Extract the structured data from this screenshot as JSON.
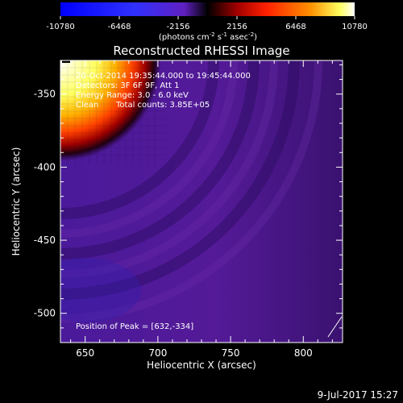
{
  "colorbar": {
    "ticks": [
      "-10780",
      "-6468",
      "-2156",
      "2156",
      "6468",
      "10780"
    ],
    "tick_values": [
      -10780,
      -6468,
      -2156,
      2156,
      6468,
      10780
    ],
    "range": [
      -10780,
      10780
    ],
    "units_prefix": "(photons cm",
    "units_exp1": "-2",
    "units_mid": " s",
    "units_exp2": "-1",
    "units_mid2": " asec",
    "units_exp3": "-2",
    "units_suffix": ")"
  },
  "chart_data": {
    "type": "heatmap",
    "title": "Reconstructed RHESSI Image",
    "xlabel": "Heliocentric X (arcsec)",
    "ylabel": "Heliocentric Y (arcsec)",
    "xlim": [
      633,
      827
    ],
    "ylim": [
      -520,
      -327
    ],
    "x_ticks": [
      650,
      700,
      750,
      800
    ],
    "y_ticks": [
      -350,
      -400,
      -450,
      -500
    ],
    "x_tick_labels": [
      "650",
      "700",
      "750",
      "800"
    ],
    "y_tick_labels": [
      "-350",
      "-400",
      "-450",
      "-500"
    ],
    "annotations": {
      "line1": "20-Oct-2014 19:35:44.000 to 19:45:44.000",
      "line2": "Detectors: 3F 6F 9F, Att 1",
      "line3": "Energy Range: 3.0 - 6.0 keV",
      "line4_a": "Clean",
      "line4_b": "Total counts: 3.85E+05",
      "peak": "Position of Peak = [632,-334]"
    },
    "peak": [
      632,
      -334
    ]
  },
  "footer": {
    "timestamp": "9-Jul-2017 15:27"
  }
}
